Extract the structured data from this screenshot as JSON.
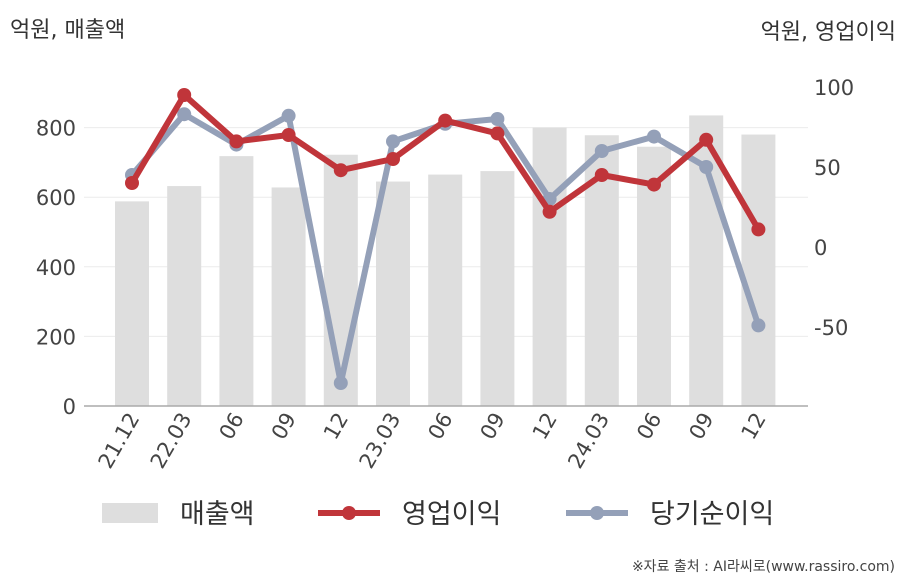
{
  "chart_data": {
    "type": "bar+line",
    "left_unit_label": "억원, 매출액",
    "right_unit_label": "억원, 영업이익",
    "categories": [
      "21.12",
      "22.03",
      "06",
      "09",
      "12",
      "23.03",
      "06",
      "09",
      "12",
      "24.03",
      "06",
      "09",
      "12"
    ],
    "bar_series": {
      "name": "매출액",
      "axis": "left",
      "values": [
        588,
        632,
        718,
        628,
        722,
        645,
        665,
        675,
        800,
        778,
        745,
        835,
        780
      ]
    },
    "line_series": [
      {
        "name": "영업이익",
        "axis": "right",
        "values": [
          40,
          95,
          66,
          70,
          48,
          55,
          79,
          71,
          22,
          45,
          39,
          67,
          11
        ]
      },
      {
        "name": "당기순이익",
        "axis": "right",
        "values": [
          45,
          83,
          64,
          82,
          -85,
          66,
          77,
          80,
          30,
          60,
          69,
          50,
          -49
        ]
      }
    ],
    "left_axis": {
      "range": [
        0,
        1000
      ],
      "ticks": [
        0,
        200,
        400,
        600,
        800
      ]
    },
    "right_axis": {
      "range": [
        -100,
        100
      ],
      "ticks": [
        -50,
        0,
        50,
        100
      ]
    },
    "grid": true,
    "legend_position": "bottom"
  },
  "colors": {
    "bar": "#dedede",
    "operating_profit": "#c0353a",
    "net_income": "#94a0b8",
    "grid": "#ebebeb",
    "axis": "#aaaaaa"
  },
  "source_text": "※자료 출처 : AI라씨로(www.rassiro.com)"
}
